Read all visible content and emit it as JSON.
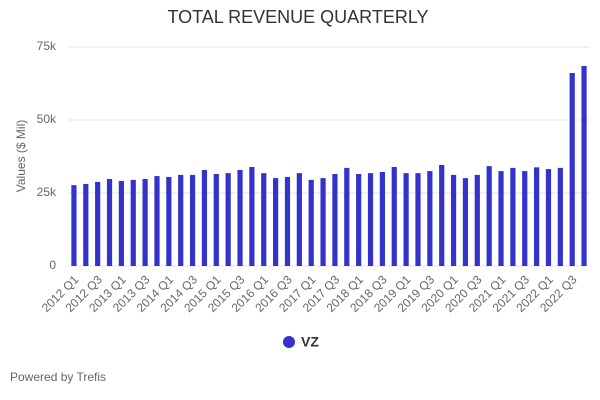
{
  "chart_data": {
    "type": "bar",
    "title": "TOTAL REVENUE QUARTERLY",
    "y_label": "Values ($ Mil)",
    "categories": [
      "2012 Q1",
      null,
      "2012 Q3",
      null,
      "2013 Q1",
      null,
      "2013 Q3",
      null,
      "2014 Q1",
      null,
      "2014 Q3",
      null,
      "2015 Q1",
      null,
      "2015 Q3",
      null,
      "2016 Q1",
      null,
      "2016 Q3",
      null,
      "2017 Q1",
      null,
      "2017 Q3",
      null,
      "2018 Q1",
      null,
      "2018 Q3",
      null,
      "2019 Q1",
      null,
      "2019 Q3",
      null,
      "2020 Q1",
      null,
      "2020 Q3",
      null,
      "2021 Q1",
      null,
      "2021 Q3",
      null,
      "2022 Q1",
      null,
      "2022 Q3",
      null
    ],
    "series": [
      {
        "name": "VZ",
        "color": "#3333cc",
        "values": [
          27.7,
          28.1,
          28.8,
          29.8,
          29.1,
          29.5,
          29.8,
          30.8,
          30.5,
          31.2,
          31.2,
          32.9,
          31.5,
          31.8,
          32.9,
          33.9,
          31.8,
          30.1,
          30.5,
          31.8,
          29.5,
          30.1,
          31.5,
          33.6,
          31.5,
          31.8,
          32.2,
          33.9,
          31.8,
          31.8,
          32.5,
          34.6,
          31.2,
          30.1,
          31.2,
          34.2,
          32.5,
          33.6,
          32.5,
          33.8,
          33.2,
          33.6,
          66.1,
          68.5
        ]
      }
    ],
    "ylim": [
      0,
      75
    ],
    "yticks": [
      0,
      {
        "value": 25,
        "label": "25k"
      },
      {
        "value": 50,
        "label": "50k"
      },
      {
        "value": 75,
        "label": "75k"
      }
    ],
    "grid": true,
    "footer": "Powered by Trefis"
  }
}
